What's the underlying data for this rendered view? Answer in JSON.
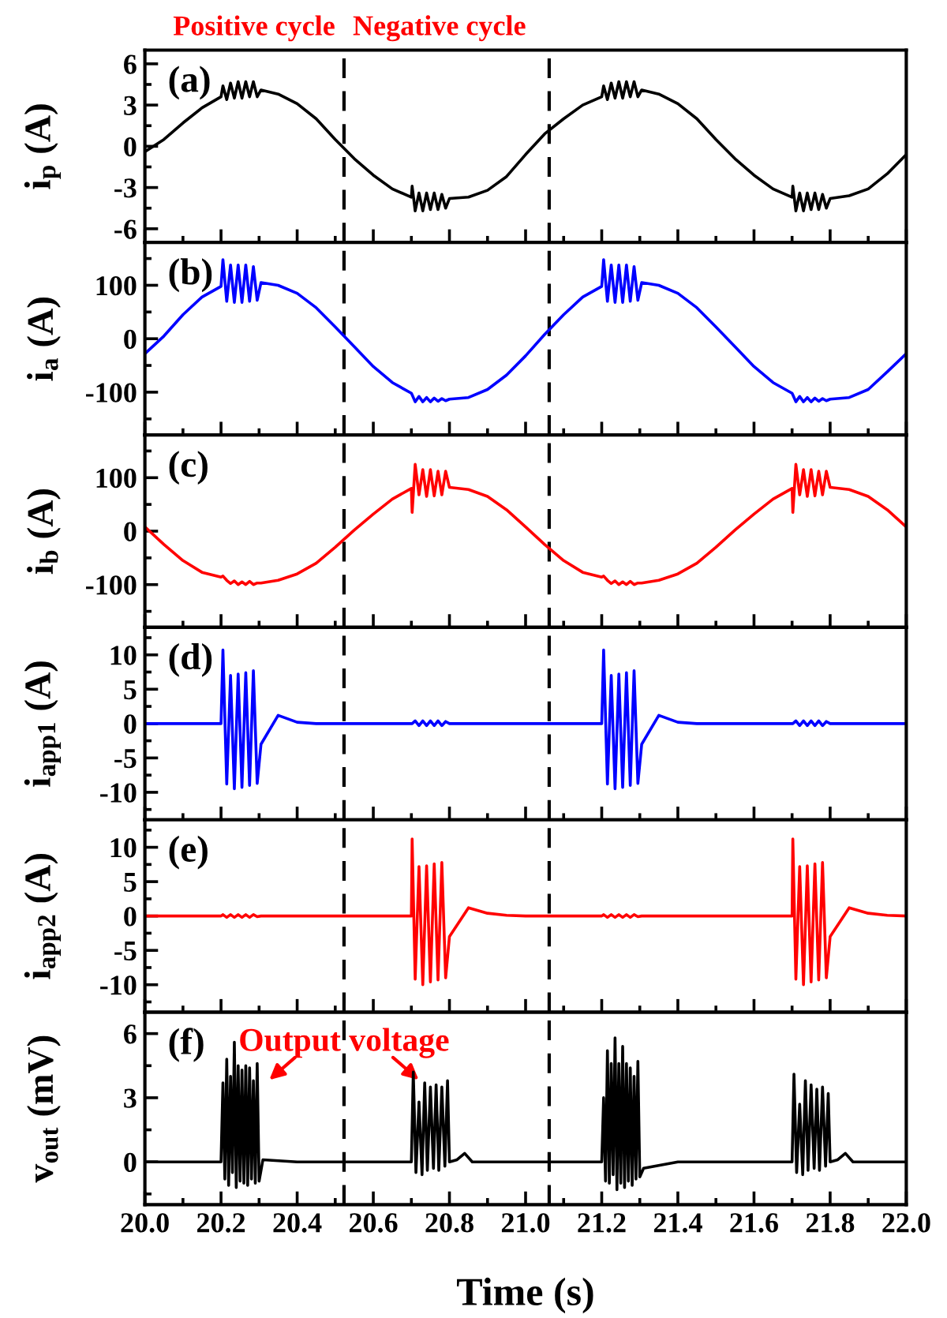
{
  "chart_data": [
    {
      "type": "line",
      "title": "(a)",
      "ylabel": "i$_{p}$ (A)",
      "color": "#000000",
      "tick_labels": "y",
      "annotations": [
        "Positive cycle",
        "Negative cycle"
      ],
      "xlim": [
        20.0,
        22.0
      ],
      "ylim": [
        -7,
        7
      ],
      "yticks": [
        -6,
        -3,
        0,
        3,
        6
      ],
      "ref_lines": [
        {
          "axis": "x",
          "value": 20.523,
          "color": "#000000",
          "line_style": "dashed"
        },
        {
          "axis": "x",
          "value": 21.062,
          "color": "#000000",
          "line_style": "dashed"
        }
      ],
      "x": [
        20.0,
        20.05,
        20.1,
        20.15,
        20.2,
        20.205,
        20.215,
        20.225,
        20.235,
        20.245,
        20.255,
        20.265,
        20.275,
        20.285,
        20.295,
        20.305,
        20.35,
        20.4,
        20.45,
        20.5,
        20.55,
        20.6,
        20.65,
        20.7,
        20.702,
        20.71,
        20.72,
        20.73,
        20.74,
        20.75,
        20.76,
        20.77,
        20.78,
        20.79,
        20.8,
        20.85,
        20.9,
        20.95,
        21.0,
        21.05,
        21.1,
        21.15,
        21.2,
        21.205,
        21.215,
        21.225,
        21.235,
        21.245,
        21.255,
        21.265,
        21.275,
        21.285,
        21.295,
        21.305,
        21.35,
        21.4,
        21.45,
        21.5,
        21.55,
        21.6,
        21.65,
        21.7,
        21.702,
        21.71,
        21.72,
        21.73,
        21.74,
        21.75,
        21.76,
        21.77,
        21.78,
        21.79,
        21.8,
        21.85,
        21.9,
        21.95,
        22.0
      ],
      "values": [
        -0.4,
        0.5,
        1.7,
        2.8,
        3.6,
        4.4,
        3.4,
        4.6,
        3.5,
        4.7,
        3.5,
        4.7,
        3.6,
        4.7,
        3.6,
        4.1,
        3.8,
        3.1,
        2.0,
        0.5,
        -0.9,
        -2.1,
        -3.1,
        -3.7,
        -2.9,
        -4.7,
        -3.4,
        -4.7,
        -3.4,
        -4.6,
        -3.4,
        -4.6,
        -3.5,
        -4.5,
        -3.8,
        -3.7,
        -3.2,
        -2.2,
        -0.6,
        0.9,
        2.0,
        3.0,
        3.6,
        4.4,
        3.4,
        4.6,
        3.5,
        4.7,
        3.5,
        4.7,
        3.6,
        4.7,
        3.6,
        4.1,
        3.8,
        3.1,
        2.0,
        0.5,
        -0.9,
        -2.1,
        -3.1,
        -3.7,
        -2.9,
        -4.7,
        -3.4,
        -4.7,
        -3.4,
        -4.6,
        -3.4,
        -4.6,
        -3.5,
        -4.5,
        -3.8,
        -3.6,
        -3.1,
        -2.0,
        -0.6
      ]
    },
    {
      "type": "line",
      "title": "(b)",
      "ylabel": "i$_{a}$ (A)",
      "color": "#0000ff",
      "tick_labels": "y",
      "xlim": [
        20.0,
        22.0
      ],
      "ylim": [
        -180,
        180
      ],
      "yticks": [
        -100,
        0,
        100
      ],
      "ref_lines": [
        {
          "axis": "x",
          "value": 20.523,
          "color": "#000000",
          "line_style": "dashed"
        },
        {
          "axis": "x",
          "value": 21.062,
          "color": "#000000",
          "line_style": "dashed"
        }
      ],
      "x": [
        20.0,
        20.05,
        20.1,
        20.15,
        20.2,
        20.205,
        20.215,
        20.225,
        20.235,
        20.245,
        20.255,
        20.265,
        20.275,
        20.285,
        20.295,
        20.305,
        20.35,
        20.4,
        20.45,
        20.5,
        20.55,
        20.6,
        20.65,
        20.7,
        20.702,
        20.71,
        20.72,
        20.73,
        20.74,
        20.75,
        20.76,
        20.77,
        20.78,
        20.79,
        20.8,
        20.85,
        20.9,
        20.95,
        21.0,
        21.05,
        21.1,
        21.15,
        21.2,
        21.205,
        21.215,
        21.225,
        21.235,
        21.245,
        21.255,
        21.265,
        21.275,
        21.285,
        21.295,
        21.305,
        21.35,
        21.4,
        21.45,
        21.5,
        21.55,
        21.6,
        21.65,
        21.7,
        21.702,
        21.71,
        21.72,
        21.73,
        21.74,
        21.75,
        21.76,
        21.77,
        21.78,
        21.79,
        21.8,
        21.85,
        21.9,
        21.95,
        22.0
      ],
      "values": [
        -28,
        5,
        45,
        78,
        98,
        148,
        70,
        138,
        68,
        138,
        68,
        138,
        70,
        135,
        72,
        105,
        100,
        85,
        58,
        22,
        -15,
        -52,
        -82,
        -102,
        -105,
        -118,
        -108,
        -118,
        -110,
        -118,
        -111,
        -117,
        -112,
        -116,
        -113,
        -110,
        -95,
        -68,
        -32,
        8,
        45,
        78,
        98,
        148,
        70,
        138,
        68,
        138,
        68,
        138,
        70,
        135,
        72,
        105,
        100,
        85,
        58,
        22,
        -15,
        -52,
        -82,
        -102,
        -105,
        -118,
        -108,
        -118,
        -110,
        -118,
        -111,
        -117,
        -112,
        -116,
        -113,
        -110,
        -95,
        -62,
        -28
      ]
    },
    {
      "type": "line",
      "title": "(c)",
      "ylabel": "i$_{b}$ (A)",
      "color": "#ff0000",
      "tick_labels": "y",
      "xlim": [
        20.0,
        22.0
      ],
      "ylim": [
        -180,
        180
      ],
      "yticks": [
        -100,
        0,
        100
      ],
      "ref_lines": [
        {
          "axis": "x",
          "value": 20.523,
          "color": "#000000",
          "line_style": "dashed"
        },
        {
          "axis": "x",
          "value": 21.062,
          "color": "#000000",
          "line_style": "dashed"
        }
      ],
      "x": [
        20.0,
        20.05,
        20.1,
        20.15,
        20.2,
        20.205,
        20.215,
        20.225,
        20.235,
        20.245,
        20.255,
        20.265,
        20.275,
        20.285,
        20.295,
        20.305,
        20.35,
        20.4,
        20.45,
        20.5,
        20.55,
        20.6,
        20.65,
        20.7,
        20.702,
        20.71,
        20.72,
        20.73,
        20.74,
        20.75,
        20.76,
        20.77,
        20.78,
        20.79,
        20.8,
        20.85,
        20.9,
        20.95,
        21.0,
        21.05,
        21.1,
        21.15,
        21.2,
        21.205,
        21.215,
        21.225,
        21.235,
        21.245,
        21.255,
        21.265,
        21.275,
        21.285,
        21.295,
        21.305,
        21.35,
        21.4,
        21.45,
        21.5,
        21.55,
        21.6,
        21.65,
        21.7,
        21.702,
        21.71,
        21.72,
        21.73,
        21.74,
        21.75,
        21.76,
        21.77,
        21.78,
        21.79,
        21.8,
        21.85,
        21.9,
        21.95,
        22.0
      ],
      "values": [
        8,
        -25,
        -55,
        -77,
        -86,
        -84,
        -92,
        -98,
        -93,
        -100,
        -95,
        -100,
        -94,
        -100,
        -97,
        -97,
        -92,
        -80,
        -60,
        -30,
        2,
        32,
        60,
        80,
        35,
        125,
        68,
        115,
        65,
        115,
        66,
        112,
        68,
        112,
        82,
        78,
        65,
        40,
        8,
        -25,
        -55,
        -77,
        -86,
        -84,
        -92,
        -98,
        -93,
        -100,
        -95,
        -100,
        -94,
        -100,
        -97,
        -97,
        -92,
        -80,
        -60,
        -30,
        2,
        32,
        60,
        80,
        35,
        125,
        68,
        115,
        65,
        115,
        66,
        112,
        68,
        112,
        82,
        78,
        65,
        40,
        8
      ]
    },
    {
      "type": "line",
      "title": "(d)",
      "ylabel": "i$_{app1}$ (A)",
      "color": "#0000ff",
      "tick_labels": "y",
      "xlim": [
        20.0,
        22.0
      ],
      "ylim": [
        -14,
        14
      ],
      "yticks": [
        -10,
        -5,
        0,
        5,
        10
      ],
      "ref_lines": [
        {
          "axis": "x",
          "value": 20.523,
          "color": "#000000",
          "line_style": "dashed"
        },
        {
          "axis": "x",
          "value": 21.062,
          "color": "#000000",
          "line_style": "dashed"
        }
      ],
      "x": [
        20.0,
        20.05,
        20.1,
        20.15,
        20.2,
        20.205,
        20.215,
        20.225,
        20.235,
        20.245,
        20.255,
        20.265,
        20.275,
        20.285,
        20.295,
        20.305,
        20.35,
        20.4,
        20.45,
        20.5,
        20.55,
        20.6,
        20.65,
        20.7,
        20.702,
        20.71,
        20.72,
        20.73,
        20.74,
        20.75,
        20.76,
        20.77,
        20.78,
        20.79,
        20.8,
        20.85,
        20.9,
        20.95,
        21.0,
        21.05,
        21.1,
        21.15,
        21.2,
        21.205,
        21.215,
        21.225,
        21.235,
        21.245,
        21.255,
        21.265,
        21.275,
        21.285,
        21.295,
        21.305,
        21.35,
        21.4,
        21.45,
        21.5,
        21.55,
        21.6,
        21.65,
        21.7,
        21.702,
        21.71,
        21.72,
        21.73,
        21.74,
        21.75,
        21.76,
        21.77,
        21.78,
        21.79,
        21.8,
        21.85,
        21.9,
        21.95,
        22.0
      ],
      "values": [
        0,
        0,
        0,
        0,
        0,
        10.7,
        -8.8,
        7.0,
        -9.5,
        7.2,
        -9.3,
        7.4,
        -9.0,
        7.7,
        -8.7,
        -3.0,
        1.2,
        0.2,
        0,
        0,
        0,
        0,
        0,
        0,
        0,
        0.4,
        -0.3,
        0.4,
        -0.3,
        0.4,
        -0.3,
        0.4,
        -0.3,
        0.3,
        0,
        0,
        0,
        0,
        0,
        0,
        0,
        0,
        0,
        10.7,
        -8.8,
        7.0,
        -9.5,
        7.2,
        -9.3,
        7.4,
        -9.0,
        7.7,
        -8.7,
        -3.0,
        1.2,
        0.2,
        0,
        0,
        0,
        0,
        0,
        0,
        0,
        0.4,
        -0.3,
        0.4,
        -0.3,
        0.4,
        -0.3,
        0.4,
        -0.3,
        0.3,
        0,
        0,
        0,
        0,
        0
      ]
    },
    {
      "type": "line",
      "title": "(e)",
      "ylabel": "i$_{app2}$ (A)",
      "color": "#ff0000",
      "tick_labels": "y",
      "xlim": [
        20.0,
        22.0
      ],
      "ylim": [
        -14,
        14
      ],
      "yticks": [
        -10,
        -5,
        0,
        5,
        10
      ],
      "ref_lines": [
        {
          "axis": "x",
          "value": 20.523,
          "color": "#000000",
          "line_style": "dashed"
        },
        {
          "axis": "x",
          "value": 21.062,
          "color": "#000000",
          "line_style": "dashed"
        }
      ],
      "x": [
        20.0,
        20.05,
        20.1,
        20.15,
        20.2,
        20.205,
        20.215,
        20.225,
        20.235,
        20.245,
        20.255,
        20.265,
        20.275,
        20.285,
        20.295,
        20.305,
        20.35,
        20.4,
        20.45,
        20.5,
        20.55,
        20.6,
        20.65,
        20.7,
        20.702,
        20.71,
        20.72,
        20.73,
        20.74,
        20.75,
        20.76,
        20.77,
        20.78,
        20.79,
        20.8,
        20.85,
        20.9,
        20.95,
        21.0,
        21.05,
        21.1,
        21.15,
        21.2,
        21.205,
        21.215,
        21.225,
        21.235,
        21.245,
        21.255,
        21.265,
        21.275,
        21.285,
        21.295,
        21.305,
        21.35,
        21.4,
        21.45,
        21.5,
        21.55,
        21.6,
        21.65,
        21.7,
        21.702,
        21.71,
        21.72,
        21.73,
        21.74,
        21.75,
        21.76,
        21.77,
        21.78,
        21.79,
        21.8,
        21.85,
        21.9,
        21.95,
        22.0
      ],
      "values": [
        0,
        0,
        0,
        0,
        0,
        0.2,
        -0.2,
        0.2,
        -0.2,
        0.2,
        -0.2,
        0.2,
        -0.2,
        0.2,
        -0.1,
        0,
        0,
        0,
        0,
        0,
        0,
        0,
        0,
        0,
        11.2,
        -9.2,
        7.2,
        -10.0,
        7.3,
        -9.6,
        7.6,
        -9.3,
        7.8,
        -9.0,
        -3.0,
        1.2,
        0.4,
        0.1,
        0,
        0,
        0,
        0,
        0,
        0.2,
        -0.2,
        0.2,
        -0.2,
        0.2,
        -0.2,
        0.2,
        -0.2,
        0.2,
        -0.1,
        0,
        0,
        0,
        0,
        0,
        0,
        0,
        0,
        0,
        11.2,
        -9.2,
        7.2,
        -10.0,
        7.3,
        -9.6,
        7.6,
        -9.3,
        7.8,
        -9.0,
        -3.0,
        1.2,
        0.4,
        0.1,
        0
      ]
    },
    {
      "type": "line",
      "title": "(f)",
      "ylabel": "v$_{out}$ (mV)",
      "xlabel": "Time (s)",
      "color": "#000000",
      "annotations": [
        {
          "text": "Output voltage",
          "x": 20.305,
          "y": 3.5
        }
      ],
      "xlim": [
        20.0,
        22.0
      ],
      "xticks": [
        {
          "value": 20.0,
          "label": "20.0"
        },
        {
          "value": 20.2,
          "label": "20.2"
        },
        {
          "value": 20.4,
          "label": "20.4"
        },
        {
          "value": 20.6,
          "label": "20.6"
        },
        {
          "value": 20.8,
          "label": "20.8"
        },
        {
          "value": 21.0,
          "label": "21.0"
        },
        {
          "value": 21.2,
          "label": "21.2"
        },
        {
          "value": 21.4,
          "label": "21.4"
        },
        {
          "value": 21.6,
          "label": "21.6"
        },
        {
          "value": 21.8,
          "label": "21.8"
        },
        {
          "value": 22.0,
          "label": "22.0"
        }
      ],
      "ylim": [
        -2,
        7
      ],
      "yticks": [
        0,
        3,
        6
      ],
      "ref_lines": [
        {
          "axis": "x",
          "value": 20.523,
          "color": "#000000",
          "line_style": "dashed"
        },
        {
          "axis": "x",
          "value": 21.062,
          "color": "#000000",
          "line_style": "dashed"
        }
      ],
      "x": [
        20.0,
        20.1,
        20.2,
        20.205,
        20.21,
        20.215,
        20.22,
        20.225,
        20.23,
        20.235,
        20.24,
        20.245,
        20.25,
        20.255,
        20.26,
        20.265,
        20.27,
        20.275,
        20.28,
        20.285,
        20.29,
        20.295,
        20.3,
        20.31,
        20.4,
        20.5,
        20.6,
        20.7,
        20.705,
        20.712,
        20.72,
        20.728,
        20.735,
        20.742,
        20.75,
        20.758,
        20.765,
        20.772,
        20.78,
        20.788,
        20.795,
        20.8,
        20.82,
        20.84,
        20.86,
        20.9,
        21.0,
        21.1,
        21.2,
        21.205,
        21.21,
        21.215,
        21.22,
        21.225,
        21.23,
        21.235,
        21.24,
        21.245,
        21.25,
        21.255,
        21.26,
        21.265,
        21.27,
        21.275,
        21.28,
        21.285,
        21.29,
        21.295,
        21.3,
        21.31,
        21.4,
        21.5,
        21.6,
        21.7,
        21.705,
        21.712,
        21.72,
        21.728,
        21.735,
        21.742,
        21.75,
        21.758,
        21.765,
        21.772,
        21.78,
        21.788,
        21.795,
        21.8,
        21.82,
        21.84,
        21.86,
        21.9,
        22.0
      ],
      "values": [
        0,
        0,
        0,
        3.7,
        -0.8,
        4.8,
        -1.1,
        4.0,
        -0.5,
        5.6,
        -1.2,
        4.5,
        -0.9,
        4.3,
        -1.0,
        4.5,
        -1.1,
        4.4,
        -0.8,
        3.8,
        -1.0,
        4.6,
        -0.9,
        0.1,
        0,
        0,
        0,
        0,
        4.2,
        -0.5,
        2.8,
        -0.6,
        3.7,
        -0.4,
        3.5,
        -0.3,
        3.6,
        -0.4,
        3.5,
        -0.2,
        3.8,
        0,
        0.1,
        0.4,
        0,
        0,
        0,
        0,
        0,
        3.0,
        -0.9,
        5.2,
        -1.0,
        4.6,
        -0.6,
        5.8,
        -1.3,
        4.6,
        -1.0,
        5.4,
        -1.2,
        4.6,
        -0.9,
        4.4,
        -1.1,
        4.0,
        -0.8,
        4.7,
        -0.7,
        -0.3,
        0,
        0,
        0,
        0,
        4.1,
        -0.5,
        2.7,
        -0.6,
        3.8,
        -0.4,
        3.6,
        -0.3,
        3.4,
        -0.4,
        3.5,
        -0.2,
        3.2,
        0,
        0.1,
        0.4,
        0,
        0,
        0
      ]
    }
  ]
}
